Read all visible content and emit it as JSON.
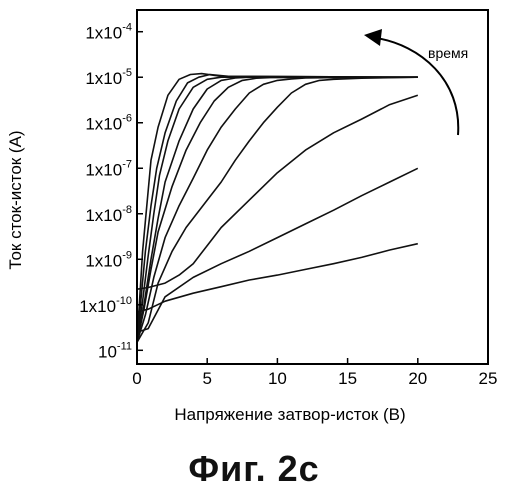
{
  "caption": "Фиг. 2c",
  "chart_data": {
    "type": "line",
    "title": "",
    "xlabel": "Напряжение затвор-исток (В)",
    "ylabel": "Ток сток-исток (А)",
    "x_scale": "linear",
    "y_scale": "log",
    "xlim": [
      0,
      25
    ],
    "ylim": [
      5e-12,
      0.0003
    ],
    "x_ticks": [
      0,
      5,
      10,
      15,
      20,
      25
    ],
    "x_tick_labels": [
      "0",
      "5",
      "10",
      "15",
      "20",
      "25"
    ],
    "y_ticks": [
      1e-11,
      1e-10,
      1e-09,
      1e-08,
      1e-07,
      1e-06,
      1e-05,
      0.0001
    ],
    "y_tick_labels": [
      {
        "base": "10",
        "exp": "-11"
      },
      {
        "base": "1x10",
        "exp": "-10"
      },
      {
        "base": "1x10",
        "exp": "-9"
      },
      {
        "base": "1x10",
        "exp": "-8"
      },
      {
        "base": "1x10",
        "exp": "-7"
      },
      {
        "base": "1x10",
        "exp": "-6"
      },
      {
        "base": "1x10",
        "exp": "-5"
      },
      {
        "base": "1x10",
        "exp": "-4"
      }
    ],
    "grid": false,
    "annotation": {
      "text": "время",
      "arrow": "curved, pointing up-left",
      "position": "top-right"
    },
    "series": [
      {
        "points": [
          [
            0,
            7e-11
          ],
          [
            0.8,
            8e-11
          ],
          [
            2,
            1.2e-10
          ],
          [
            4,
            1.8e-10
          ],
          [
            6,
            2.5e-10
          ],
          [
            8,
            3.5e-10
          ],
          [
            10,
            4.5e-10
          ],
          [
            12,
            6e-10
          ],
          [
            14,
            8e-10
          ],
          [
            16,
            1.1e-09
          ],
          [
            18,
            1.6e-09
          ],
          [
            20,
            2.2e-09
          ]
        ]
      },
      {
        "points": [
          [
            0,
            2.5e-11
          ],
          [
            0.8,
            3e-11
          ],
          [
            2,
            1.5e-10
          ],
          [
            4,
            4e-10
          ],
          [
            6,
            8e-10
          ],
          [
            8,
            1.5e-09
          ],
          [
            10,
            3e-09
          ],
          [
            12,
            6e-09
          ],
          [
            14,
            1.2e-08
          ],
          [
            16,
            2.5e-08
          ],
          [
            18,
            5e-08
          ],
          [
            20,
            1e-07
          ]
        ]
      },
      {
        "points": [
          [
            0,
            2.2e-10
          ],
          [
            0.8,
            2.4e-10
          ],
          [
            2,
            3e-10
          ],
          [
            3,
            4.5e-10
          ],
          [
            4,
            8e-10
          ],
          [
            5,
            2e-09
          ],
          [
            6,
            5e-09
          ],
          [
            8,
            2e-08
          ],
          [
            10,
            8e-08
          ],
          [
            12,
            2.5e-07
          ],
          [
            14,
            6e-07
          ],
          [
            16,
            1.2e-06
          ],
          [
            18,
            2.5e-06
          ],
          [
            20,
            4e-06
          ]
        ]
      },
      {
        "points": [
          [
            0,
            1.5e-11
          ],
          [
            0.8,
            4e-11
          ],
          [
            1.5,
            3e-10
          ],
          [
            2.5,
            1.5e-09
          ],
          [
            3.5,
            5e-09
          ],
          [
            5,
            2e-08
          ],
          [
            6,
            5e-08
          ],
          [
            7,
            1.5e-07
          ],
          [
            8,
            4e-07
          ],
          [
            9,
            1e-06
          ],
          [
            10,
            2.2e-06
          ],
          [
            11,
            4.5e-06
          ],
          [
            12,
            7e-06
          ],
          [
            13,
            8.5e-06
          ],
          [
            14,
            9e-06
          ],
          [
            16,
            9.5e-06
          ],
          [
            20,
            1e-05
          ]
        ]
      },
      {
        "points": [
          [
            0,
            1.5e-11
          ],
          [
            0.6,
            6e-11
          ],
          [
            1.2,
            4e-10
          ],
          [
            2,
            3e-09
          ],
          [
            3,
            1.5e-08
          ],
          [
            4,
            6e-08
          ],
          [
            5,
            2.5e-07
          ],
          [
            6,
            8e-07
          ],
          [
            7,
            2e-06
          ],
          [
            8,
            4.5e-06
          ],
          [
            9,
            7e-06
          ],
          [
            10,
            8.5e-06
          ],
          [
            11,
            9.2e-06
          ],
          [
            12,
            9.6e-06
          ],
          [
            14,
            9.8e-06
          ],
          [
            20,
            1e-05
          ]
        ]
      },
      {
        "points": [
          [
            0,
            1.5e-11
          ],
          [
            0.5,
            8e-11
          ],
          [
            1,
            6e-10
          ],
          [
            1.5,
            4e-09
          ],
          [
            2.5,
            4e-08
          ],
          [
            3.5,
            2.5e-07
          ],
          [
            4.5,
            1e-06
          ],
          [
            5.5,
            3e-06
          ],
          [
            6.5,
            6e-06
          ],
          [
            7.5,
            8.5e-06
          ],
          [
            8.5,
            9.5e-06
          ],
          [
            9.5,
            9.8e-06
          ],
          [
            12,
            9.9e-06
          ],
          [
            20,
            1e-05
          ]
        ]
      },
      {
        "points": [
          [
            0,
            1.5e-11
          ],
          [
            0.5,
            1e-10
          ],
          [
            1,
            1e-09
          ],
          [
            1.5,
            8e-09
          ],
          [
            2,
            5e-08
          ],
          [
            3,
            4e-07
          ],
          [
            4,
            2e-06
          ],
          [
            5,
            5.5e-06
          ],
          [
            6,
            8.5e-06
          ],
          [
            7,
            9.6e-06
          ],
          [
            8,
            1e-05
          ],
          [
            20,
            1e-05
          ]
        ]
      },
      {
        "points": [
          [
            0,
            1.5e-11
          ],
          [
            0.4,
            1.2e-10
          ],
          [
            0.8,
            1.2e-09
          ],
          [
            1.2,
            1e-08
          ],
          [
            1.6,
            7e-08
          ],
          [
            2.2,
            4e-07
          ],
          [
            3,
            2e-06
          ],
          [
            4,
            6e-06
          ],
          [
            5,
            9e-06
          ],
          [
            6,
            1e-05
          ],
          [
            20,
            1e-05
          ]
        ]
      },
      {
        "points": [
          [
            0,
            1.5e-11
          ],
          [
            0.3,
            1.5e-10
          ],
          [
            0.6,
            1.5e-09
          ],
          [
            1,
            1.5e-08
          ],
          [
            1.4,
            1e-07
          ],
          [
            2,
            6e-07
          ],
          [
            2.8,
            3e-06
          ],
          [
            3.6,
            7.5e-06
          ],
          [
            4.4,
            1e-05
          ],
          [
            5.2,
            1.15e-05
          ],
          [
            6.5,
            1.05e-05
          ],
          [
            20,
            1e-05
          ]
        ]
      },
      {
        "points": [
          [
            0,
            1.5e-11
          ],
          [
            0.2,
            1.5e-10
          ],
          [
            0.4,
            1.5e-09
          ],
          [
            0.7,
            1.5e-08
          ],
          [
            1,
            1.5e-07
          ],
          [
            1.5,
            8e-07
          ],
          [
            2.2,
            4e-06
          ],
          [
            3,
            9e-06
          ],
          [
            3.8,
            1.15e-05
          ],
          [
            4.6,
            1.2e-05
          ],
          [
            6,
            1.05e-05
          ],
          [
            20,
            1e-05
          ]
        ]
      }
    ]
  }
}
